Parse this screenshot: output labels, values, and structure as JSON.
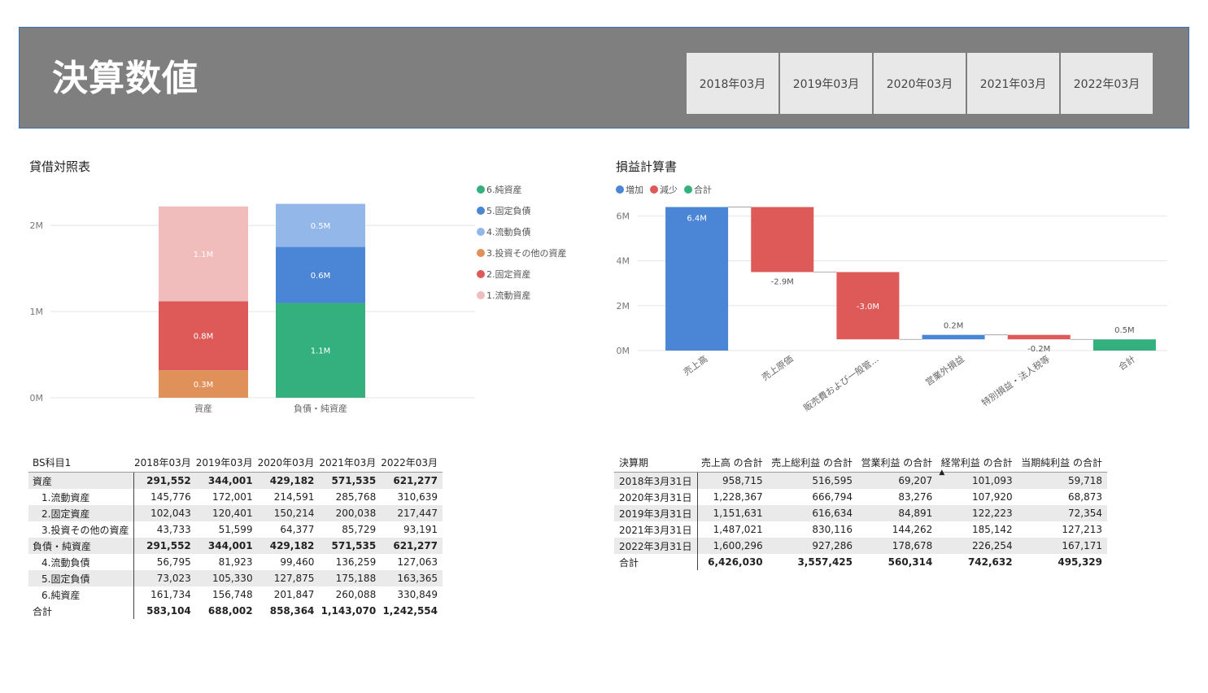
{
  "header": {
    "title": "決算数値",
    "slicer": [
      "2018年03月",
      "2019年03月",
      "2020年03月",
      "2021年03月",
      "2022年03月"
    ]
  },
  "bs_chart": {
    "title": "貸借対照表",
    "legend": [
      "6.純資産",
      "5.固定負債",
      "4.流動負債",
      "3.投資その他の資産",
      "2.固定資産",
      "1.流動資産"
    ]
  },
  "pl_chart": {
    "title": "損益計算書",
    "legend": [
      "増加",
      "減少",
      "合計"
    ]
  },
  "chart_data": [
    {
      "type": "bar",
      "stacked": true,
      "categories": [
        "資産",
        "負債・純資産"
      ],
      "yticks": [
        "0M",
        "1M",
        "2M"
      ],
      "ylim": [
        0,
        2.35
      ],
      "series": [
        {
          "name": "1.流動資産",
          "color": "#f0bcbc",
          "values": [
            1.1,
            0
          ],
          "labels": [
            "1.1M",
            ""
          ]
        },
        {
          "name": "2.固定資産",
          "color": "#dd5a58",
          "values": [
            0.8,
            0
          ],
          "labels": [
            "0.8M",
            ""
          ]
        },
        {
          "name": "3.投資その他の資産",
          "color": "#e0915a",
          "values": [
            0.32,
            0
          ],
          "labels": [
            "0.3M",
            ""
          ]
        },
        {
          "name": "4.流動負債",
          "color": "#93b7e8",
          "values": [
            0,
            0.5
          ],
          "labels": [
            "",
            "0.5M"
          ]
        },
        {
          "name": "5.固定負債",
          "color": "#4a85d6",
          "values": [
            0,
            0.65
          ],
          "labels": [
            "",
            "0.6M"
          ]
        },
        {
          "name": "6.純資産",
          "color": "#33b07d",
          "values": [
            0,
            1.1
          ],
          "labels": [
            "",
            "1.1M"
          ]
        }
      ],
      "stack_order": [
        "3.投資その他の資産",
        "2.固定資産",
        "1.流動資産",
        "6.純資産",
        "5.固定負債",
        "4.流動負債"
      ]
    },
    {
      "type": "waterfall",
      "categories": [
        "売上高",
        "売上原価",
        "販売費および一般管...",
        "営業外損益",
        "特別損益・法人税等",
        "合計"
      ],
      "values": [
        6.4,
        -2.9,
        -3.0,
        0.2,
        -0.2,
        0.5
      ],
      "labels": [
        "6.4M",
        "-2.9M",
        "-3.0M",
        "0.2M",
        "-0.2M",
        "0.5M"
      ],
      "yticks": [
        "0M",
        "2M",
        "4M",
        "6M"
      ],
      "ylim": [
        0,
        7
      ],
      "colors": {
        "increase": "#4a85d6",
        "decrease": "#dd5a58",
        "total": "#33b07d"
      }
    }
  ],
  "bs_table": {
    "columns": [
      "BS科目1",
      "2018年03月",
      "2019年03月",
      "2020年03月",
      "2021年03月",
      "2022年03月"
    ],
    "rows": [
      {
        "label": "資産",
        "values": [
          "291,552",
          "344,001",
          "429,182",
          "571,535",
          "621,277"
        ]
      },
      {
        "label": "1.流動資産",
        "values": [
          "145,776",
          "172,001",
          "214,591",
          "285,768",
          "310,639"
        ]
      },
      {
        "label": "2.固定資産",
        "values": [
          "102,043",
          "120,401",
          "150,214",
          "200,038",
          "217,447"
        ]
      },
      {
        "label": "3.投資その他の資産",
        "values": [
          "43,733",
          "51,599",
          "64,377",
          "85,729",
          "93,191"
        ]
      },
      {
        "label": "負債・純資産",
        "values": [
          "291,552",
          "344,001",
          "429,182",
          "571,535",
          "621,277"
        ]
      },
      {
        "label": "4.流動負債",
        "values": [
          "56,795",
          "81,923",
          "99,460",
          "136,259",
          "127,063"
        ]
      },
      {
        "label": "5.固定負債",
        "values": [
          "73,023",
          "105,330",
          "127,875",
          "175,188",
          "163,365"
        ]
      },
      {
        "label": "6.純資産",
        "values": [
          "161,734",
          "156,748",
          "201,847",
          "260,088",
          "330,849"
        ]
      },
      {
        "label": "合計",
        "values": [
          "583,104",
          "688,002",
          "858,364",
          "1,143,070",
          "1,242,554"
        ]
      }
    ]
  },
  "pl_table": {
    "columns": [
      "決算期",
      "売上高 の合計",
      "売上総利益 の合計",
      "営業利益 の合計",
      "経常利益 の合計",
      "当期純利益 の合計"
    ],
    "rows": [
      {
        "label": "2018年3月31日",
        "values": [
          "958,715",
          "516,595",
          "69,207",
          "101,093",
          "59,718"
        ]
      },
      {
        "label": "2020年3月31日",
        "values": [
          "1,228,367",
          "666,794",
          "83,276",
          "107,920",
          "68,873"
        ]
      },
      {
        "label": "2019年3月31日",
        "values": [
          "1,151,631",
          "616,634",
          "84,891",
          "122,223",
          "72,354"
        ]
      },
      {
        "label": "2021年3月31日",
        "values": [
          "1,487,021",
          "830,116",
          "144,262",
          "185,142",
          "127,213"
        ]
      },
      {
        "label": "2022年3月31日",
        "values": [
          "1,600,296",
          "927,286",
          "178,678",
          "226,254",
          "167,171"
        ]
      },
      {
        "label": "合計",
        "values": [
          "6,426,030",
          "3,557,425",
          "560,314",
          "742,632",
          "495,329"
        ]
      }
    ]
  }
}
